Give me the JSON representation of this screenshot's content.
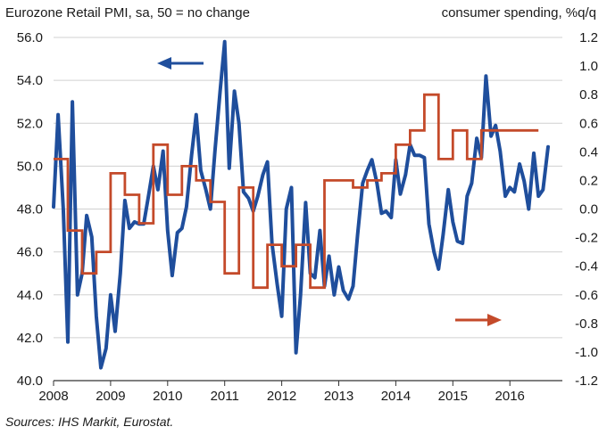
{
  "chart_data": {
    "type": "line",
    "title_left": "Eurozone Retail PMI, sa, 50 = no change",
    "title_right": "consumer spending, %q/q",
    "source": "Sources: IHS Markit, Eurostat.",
    "x_ticks": [
      "2008",
      "2009",
      "2010",
      "2011",
      "2012",
      "2013",
      "2014",
      "2015",
      "2016"
    ],
    "x_range": [
      2008,
      2016.92
    ],
    "y_left": {
      "ylim": [
        40,
        56
      ],
      "ticks": [
        "40.0",
        "42.0",
        "44.0",
        "46.0",
        "48.0",
        "50.0",
        "52.0",
        "54.0",
        "56.0"
      ]
    },
    "y_right": {
      "ylim": [
        -1.2,
        1.2
      ],
      "ticks": [
        "-1.2",
        "-1.0",
        "-0.8",
        "-0.6",
        "-0.4",
        "-0.2",
        "0.0",
        "0.2",
        "0.4",
        "0.6",
        "0.8",
        "1.0",
        "1.2"
      ]
    },
    "series": [
      {
        "name": "Eurozone Retail PMI",
        "axis": "left",
        "color": "#1f4e9c",
        "x": [
          2008.0,
          2008.08,
          2008.17,
          2008.25,
          2008.33,
          2008.42,
          2008.5,
          2008.58,
          2008.67,
          2008.75,
          2008.83,
          2008.92,
          2009.0,
          2009.08,
          2009.17,
          2009.25,
          2009.33,
          2009.42,
          2009.5,
          2009.58,
          2009.67,
          2009.75,
          2009.83,
          2009.92,
          2010.0,
          2010.08,
          2010.17,
          2010.25,
          2010.33,
          2010.42,
          2010.5,
          2010.58,
          2010.67,
          2010.75,
          2010.83,
          2010.92,
          2011.0,
          2011.08,
          2011.17,
          2011.25,
          2011.33,
          2011.42,
          2011.5,
          2011.58,
          2011.67,
          2011.75,
          2011.83,
          2011.92,
          2012.0,
          2012.08,
          2012.17,
          2012.25,
          2012.33,
          2012.42,
          2012.5,
          2012.58,
          2012.67,
          2012.75,
          2012.83,
          2012.92,
          2013.0,
          2013.08,
          2013.17,
          2013.25,
          2013.33,
          2013.42,
          2013.5,
          2013.58,
          2013.67,
          2013.75,
          2013.83,
          2013.92,
          2014.0,
          2014.08,
          2014.17,
          2014.25,
          2014.33,
          2014.42,
          2014.5,
          2014.58,
          2014.67,
          2014.75,
          2014.83,
          2014.92,
          2015.0,
          2015.08,
          2015.17,
          2015.25,
          2015.33,
          2015.42,
          2015.5,
          2015.58,
          2015.67,
          2015.75,
          2015.83,
          2015.92,
          2016.0,
          2016.08,
          2016.17,
          2016.25,
          2016.33,
          2016.42,
          2016.5,
          2016.58,
          2016.67
        ],
        "values": [
          48.1,
          52.4,
          48.0,
          41.8,
          53.0,
          44.0,
          45.0,
          47.7,
          46.7,
          43.0,
          40.6,
          41.5,
          44.0,
          42.3,
          45.0,
          48.4,
          47.1,
          47.4,
          47.3,
          47.3,
          48.7,
          50.0,
          48.9,
          50.7,
          47.0,
          44.9,
          46.9,
          47.1,
          48.1,
          50.5,
          52.4,
          49.8,
          48.9,
          48.0,
          50.7,
          53.5,
          55.8,
          49.9,
          53.5,
          52.0,
          48.8,
          48.5,
          47.9,
          48.6,
          49.6,
          50.2,
          46.4,
          44.5,
          43.0,
          48.0,
          49.0,
          41.3,
          44.0,
          48.3,
          45.0,
          44.8,
          47.0,
          44.4,
          45.8,
          44.0,
          45.3,
          44.2,
          43.8,
          44.4,
          46.8,
          49.2,
          49.8,
          50.3,
          49.2,
          47.8,
          47.9,
          47.6,
          50.3,
          48.7,
          49.6,
          51.0,
          50.5,
          50.5,
          50.4,
          47.3,
          46.0,
          45.2,
          46.8,
          48.9,
          47.4,
          46.5,
          46.4,
          48.6,
          49.2,
          51.3,
          50.4,
          54.2,
          51.4,
          51.9,
          50.7,
          48.6,
          49.0,
          48.8,
          50.1,
          49.3,
          48.0,
          50.6,
          48.6,
          48.9,
          50.9
        ]
      },
      {
        "name": "consumer spending, %q/q",
        "axis": "right",
        "color": "#c44a2a",
        "x": [
          2008.0,
          2008.25,
          2008.5,
          2008.75,
          2009.0,
          2009.25,
          2009.5,
          2009.75,
          2010.0,
          2010.25,
          2010.5,
          2010.75,
          2011.0,
          2011.25,
          2011.5,
          2011.75,
          2012.0,
          2012.25,
          2012.5,
          2012.75,
          2013.0,
          2013.25,
          2013.5,
          2013.75,
          2014.0,
          2014.25,
          2014.5,
          2014.75,
          2015.0,
          2015.25,
          2015.5,
          2015.75,
          2016.0,
          2016.25
        ],
        "values": [
          0.35,
          -0.15,
          -0.45,
          -0.3,
          0.25,
          0.1,
          -0.1,
          0.45,
          0.1,
          0.3,
          0.2,
          0.05,
          -0.45,
          0.15,
          -0.55,
          -0.25,
          -0.4,
          -0.25,
          -0.55,
          0.2,
          0.2,
          0.15,
          0.2,
          0.25,
          0.45,
          0.55,
          0.8,
          0.35,
          0.55,
          0.35,
          0.55,
          0.55,
          0.55,
          0.55
        ]
      }
    ]
  }
}
